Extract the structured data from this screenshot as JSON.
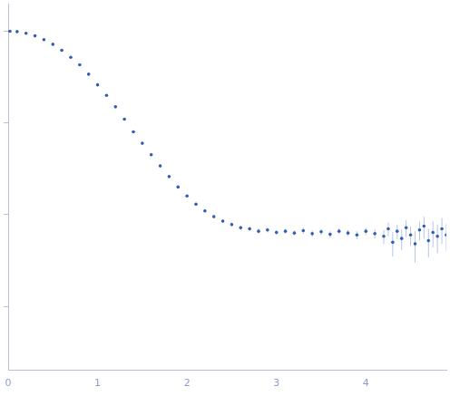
{
  "chart_data": {
    "type": "scatter",
    "x": [
      0.02,
      0.1,
      0.2,
      0.3,
      0.4,
      0.5,
      0.6,
      0.7,
      0.8,
      0.9,
      1.0,
      1.1,
      1.2,
      1.3,
      1.4,
      1.5,
      1.6,
      1.7,
      1.8,
      1.9,
      2.0,
      2.1,
      2.2,
      2.3,
      2.4,
      2.5,
      2.6,
      2.7,
      2.8,
      2.9,
      3.0,
      3.1,
      3.2,
      3.3,
      3.4,
      3.5,
      3.6,
      3.7,
      3.8,
      3.9,
      4.0,
      4.1,
      4.2,
      4.25,
      4.3,
      4.35,
      4.4,
      4.45,
      4.5,
      4.55,
      4.6,
      4.65,
      4.7,
      4.75,
      4.8,
      4.85,
      4.9
    ],
    "values": [
      10.0,
      9.9,
      9.5,
      8.9,
      8.1,
      7.2,
      6.2,
      5.2,
      4.3,
      3.4,
      2.6,
      2.0,
      1.5,
      1.1,
      0.8,
      0.6,
      0.45,
      0.34,
      0.26,
      0.2,
      0.16,
      0.13,
      0.11,
      0.095,
      0.085,
      0.078,
      0.072,
      0.07,
      0.066,
      0.068,
      0.064,
      0.066,
      0.063,
      0.067,
      0.062,
      0.065,
      0.061,
      0.066,
      0.063,
      0.06,
      0.066,
      0.062,
      0.058,
      0.07,
      0.05,
      0.066,
      0.055,
      0.072,
      0.06,
      0.048,
      0.068,
      0.075,
      0.052,
      0.064,
      0.058,
      0.07,
      0.06
    ],
    "errors": [
      0.05,
      0.05,
      0.05,
      0.05,
      0.04,
      0.04,
      0.04,
      0.03,
      0.03,
      0.03,
      0.02,
      0.02,
      0.015,
      0.012,
      0.01,
      0.008,
      0.007,
      0.006,
      0.005,
      0.005,
      0.004,
      0.004,
      0.004,
      0.004,
      0.004,
      0.004,
      0.004,
      0.004,
      0.004,
      0.004,
      0.004,
      0.004,
      0.004,
      0.005,
      0.005,
      0.005,
      0.005,
      0.005,
      0.005,
      0.006,
      0.006,
      0.007,
      0.01,
      0.012,
      0.015,
      0.012,
      0.014,
      0.015,
      0.014,
      0.018,
      0.016,
      0.02,
      0.018,
      0.02,
      0.02,
      0.022,
      0.02
    ],
    "color": "#2f5faf",
    "marker": "circle",
    "xlim": [
      0,
      4.9
    ],
    "xticks": [
      0,
      1,
      2,
      3,
      4
    ],
    "ylim": [
      0.002,
      20
    ],
    "yticks": [
      0.01,
      0.1,
      1,
      10
    ],
    "log": "y",
    "grid": false,
    "tick_labels": "x"
  }
}
